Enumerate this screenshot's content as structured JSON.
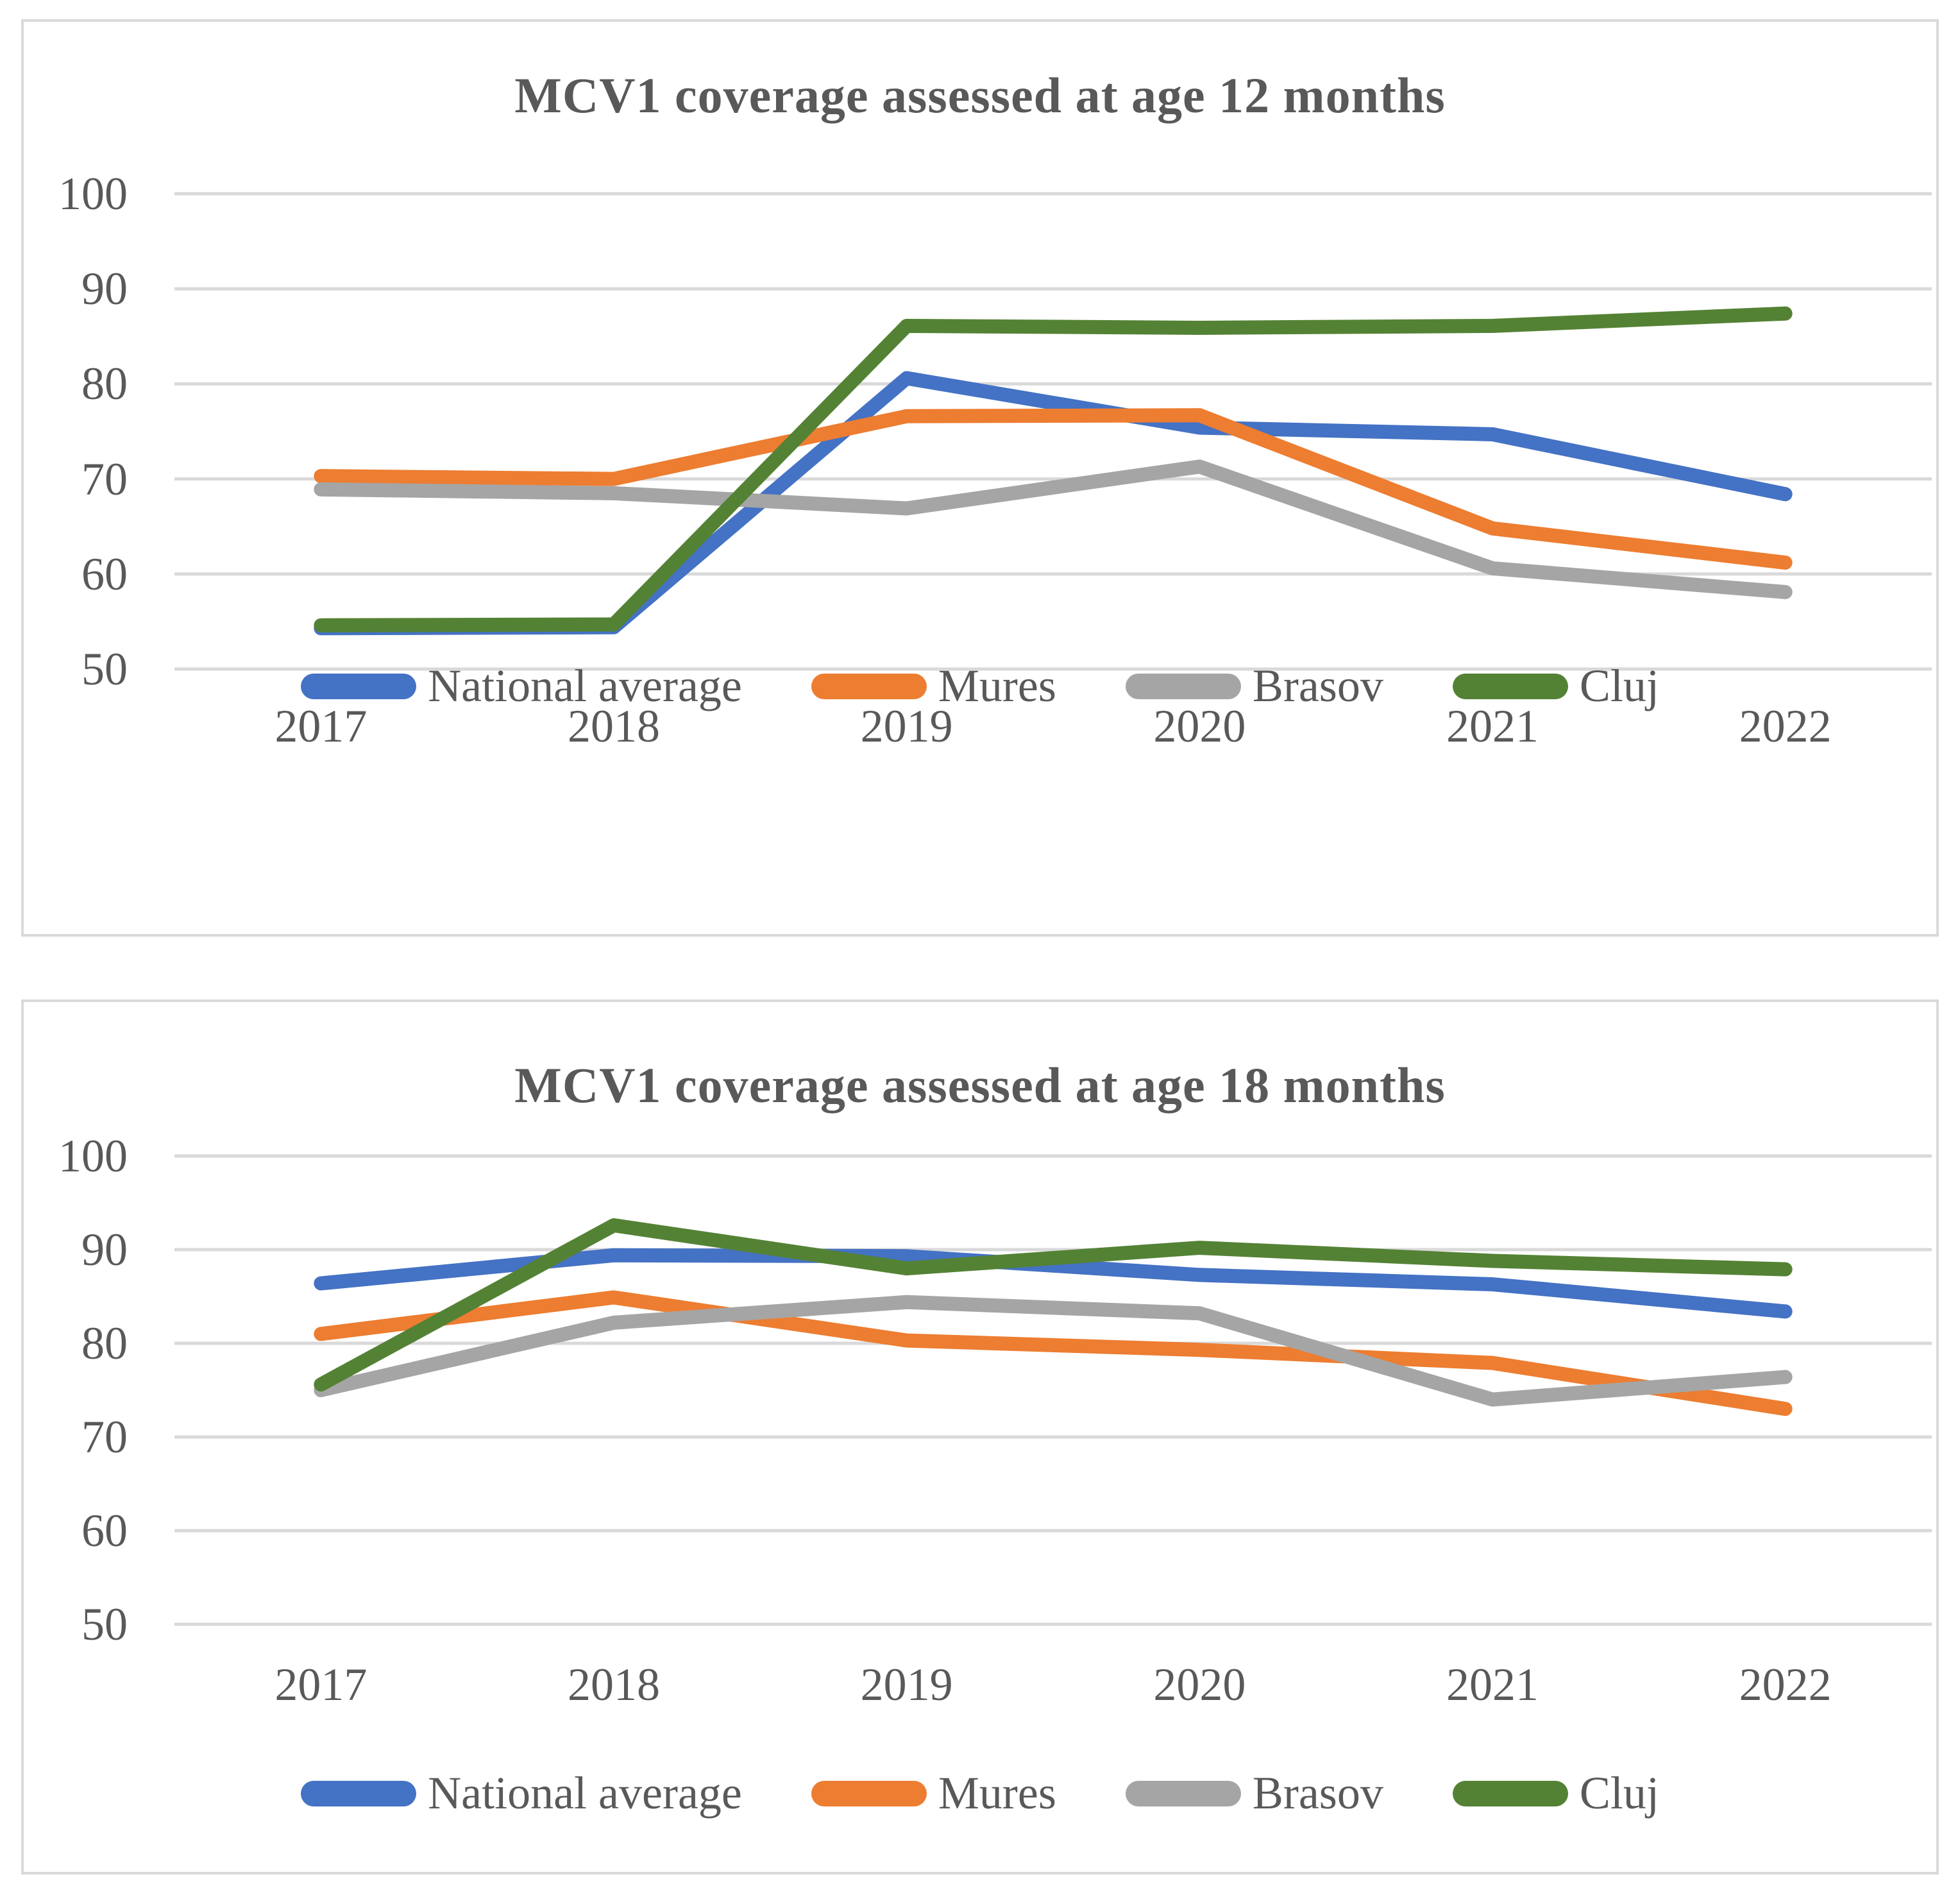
{
  "chart_data": [
    {
      "type": "line",
      "title": "MCV1 coverage assessed at age 12 months",
      "xlabel": "",
      "ylabel": "",
      "categories": [
        "2017",
        "2018",
        "2019",
        "2020",
        "2021",
        "2022"
      ],
      "y_ticks": [
        100,
        90,
        80,
        70,
        60,
        50
      ],
      "ylim": [
        50,
        100
      ],
      "grid": "horizontal",
      "legend_position": "bottom",
      "series": [
        {
          "name": "National average",
          "color": "#4472C4",
          "values": [
            54.3,
            54.4,
            80.6,
            75.4,
            74.7,
            68.4
          ]
        },
        {
          "name": "Mures",
          "color": "#ED7D31",
          "values": [
            70.3,
            70.0,
            76.6,
            76.7,
            64.8,
            61.2
          ]
        },
        {
          "name": "Brasov",
          "color": "#A5A5A5",
          "values": [
            68.9,
            68.5,
            66.9,
            71.3,
            60.6,
            58.1
          ]
        },
        {
          "name": "Cluj",
          "color": "#548235",
          "values": [
            54.6,
            54.7,
            86.1,
            85.9,
            86.1,
            87.4
          ]
        }
      ]
    },
    {
      "type": "line",
      "title": "MCV1 coverage assessed at age 18 months",
      "xlabel": "",
      "ylabel": "",
      "categories": [
        "2017",
        "2018",
        "2019",
        "2020",
        "2021",
        "2022"
      ],
      "y_ticks": [
        100,
        90,
        80,
        70,
        60,
        50
      ],
      "ylim": [
        50,
        100
      ],
      "grid": "horizontal",
      "legend_position": "bottom",
      "series": [
        {
          "name": "National average",
          "color": "#4472C4",
          "values": [
            86.4,
            89.4,
            89.3,
            87.3,
            86.3,
            83.4
          ]
        },
        {
          "name": "Mures",
          "color": "#ED7D31",
          "values": [
            81.0,
            84.9,
            80.3,
            79.3,
            77.9,
            73.0
          ]
        },
        {
          "name": "Brasov",
          "color": "#A5A5A5",
          "values": [
            75.0,
            82.2,
            84.4,
            83.2,
            74.0,
            76.4
          ]
        },
        {
          "name": "Cluj",
          "color": "#548235",
          "values": [
            75.6,
            92.6,
            88.0,
            90.2,
            88.8,
            87.9
          ]
        }
      ]
    }
  ],
  "styles": {
    "text_color": "#595959",
    "gridline_color": "#D9D9D9",
    "panel_border_color": "#D9D9D9"
  }
}
